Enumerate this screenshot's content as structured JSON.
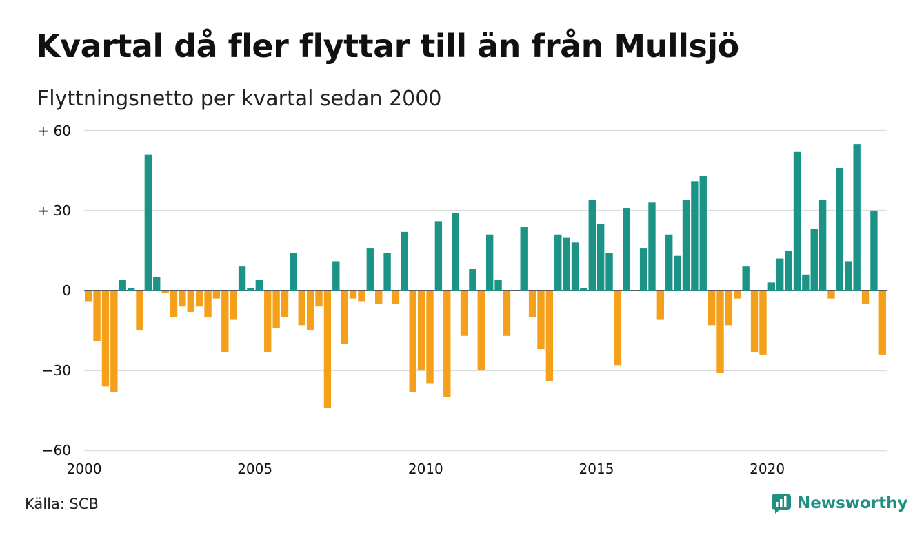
{
  "title": "Kvartal då fler flyttar till än från Mullsjö",
  "subtitle": "Flyttningsnetto per kvartal sedan 2000",
  "source": "Källa: SCB",
  "brand": "Newsworthy",
  "colors": {
    "positive": "#1c9387",
    "negative": "#f5a01a",
    "grid": "#dddddd",
    "brand": "#1f8f82"
  },
  "chart_data": {
    "type": "bar",
    "start_year": 2000,
    "x_ticks": [
      "2000",
      "2005",
      "2010",
      "2015",
      "2020"
    ],
    "y_ticks": [
      {
        "value": 60,
        "label": "+ 60"
      },
      {
        "value": 30,
        "label": "+ 30"
      },
      {
        "value": 0,
        "label": "0"
      },
      {
        "value": -30,
        "label": "−30"
      },
      {
        "value": -60,
        "label": "−60"
      }
    ],
    "ylim": [
      -60,
      60
    ],
    "grid": true,
    "values": [
      -4,
      -19,
      -36,
      -38,
      4,
      1,
      -15,
      51,
      5,
      -1,
      -10,
      -6,
      -8,
      -6,
      -10,
      -3,
      -23,
      -11,
      9,
      1,
      4,
      -23,
      -14,
      -10,
      14,
      -13,
      -15,
      -6,
      -44,
      11,
      -20,
      -3,
      -4,
      16,
      -5,
      14,
      -5,
      22,
      -38,
      -30,
      -35,
      26,
      -40,
      29,
      -17,
      8,
      -30,
      21,
      4,
      -17,
      0,
      24,
      -10,
      -22,
      -34,
      21,
      20,
      18,
      1,
      34,
      25,
      14,
      -28,
      31,
      0,
      16,
      33,
      -11,
      21,
      13,
      34,
      41,
      43,
      -13,
      -31,
      -13,
      -3,
      9,
      -23,
      -24,
      3,
      12,
      15,
      52,
      6,
      23,
      34,
      -3,
      46,
      11,
      55,
      -5,
      30,
      -24
    ]
  }
}
